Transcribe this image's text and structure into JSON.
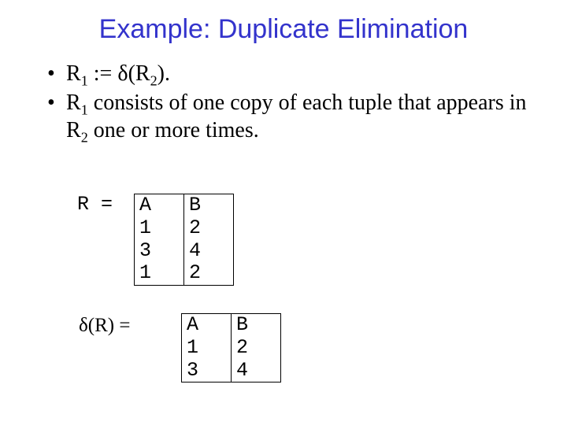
{
  "title": "Example: Duplicate Elimination",
  "bullets": {
    "b1_pre": "R",
    "b1_sub1": "1",
    "b1_mid": " := ",
    "b1_delta": "δ",
    "b1_open": "(R",
    "b1_sub2": "2",
    "b1_close": ").",
    "b2_pre": "R",
    "b2_sub1": "1",
    "b2_mid": " consists of one copy of each tuple that appears in R",
    "b2_sub2": "2",
    "b2_post": " one or more times."
  },
  "labels": {
    "r_eq": "R =",
    "dr_delta": "δ",
    "dr_rest": "(R) ="
  },
  "tableR": {
    "h1": "A",
    "h2": "B",
    "r1c1": "1",
    "r1c2": "2",
    "r2c1": "3",
    "r2c2": "4",
    "r3c1": "1",
    "r3c2": "2"
  },
  "tableDR": {
    "h1": "A",
    "h2": "B",
    "r1c1": "1",
    "r1c2": "2",
    "r2c1": "3",
    "r2c2": "4"
  },
  "colors": {
    "title": "#3333cc",
    "text": "#000000",
    "background": "#ffffff"
  }
}
